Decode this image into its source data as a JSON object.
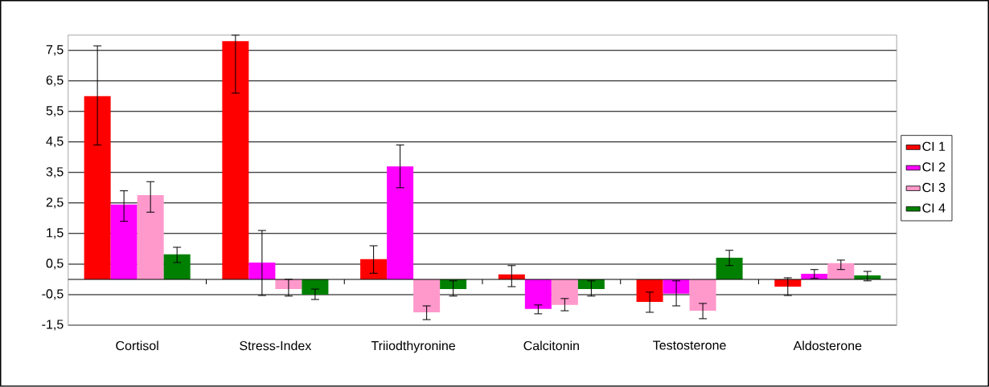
{
  "chart_data": {
    "type": "bar",
    "categories": [
      "Cortisol",
      "Stress-Index",
      "Triiodthyronine",
      "Calcitonin",
      "Testosterone",
      "Aldosterone"
    ],
    "series": [
      {
        "name": "CI 1",
        "color": "#ff0000",
        "values": [
          6.0,
          7.8,
          0.66,
          0.16,
          -0.74,
          -0.24
        ],
        "errors": [
          [
            4.4,
            7.65
          ],
          [
            6.1,
            8.0
          ],
          [
            0.2,
            1.1
          ],
          [
            -0.24,
            0.45
          ],
          [
            -1.08,
            -0.42
          ],
          [
            -0.53,
            0.05
          ]
        ]
      },
      {
        "name": "CI 2",
        "color": "#ff00ff",
        "values": [
          2.45,
          0.55,
          3.7,
          -0.97,
          -0.47,
          0.18
        ],
        "errors": [
          [
            1.9,
            2.9
          ],
          [
            -0.53,
            1.6
          ],
          [
            3.0,
            4.4
          ],
          [
            -1.13,
            -0.84
          ],
          [
            -0.87,
            -0.05
          ],
          [
            0.03,
            0.32
          ]
        ]
      },
      {
        "name": "CI 3",
        "color": "#ff99cc",
        "values": [
          2.76,
          -0.32,
          -1.08,
          -0.84,
          -1.03,
          0.53
        ],
        "errors": [
          [
            2.2,
            3.2
          ],
          [
            -0.55,
            0.0
          ],
          [
            -1.32,
            -0.87
          ],
          [
            -1.03,
            -0.63
          ],
          [
            -1.29,
            -0.79
          ],
          [
            0.32,
            0.63
          ]
        ]
      },
      {
        "name": "CI 4",
        "color": "#008000",
        "values": [
          0.82,
          -0.5,
          -0.32,
          -0.32,
          0.71,
          0.13
        ],
        "errors": [
          [
            0.55,
            1.05
          ],
          [
            -0.66,
            -0.32
          ],
          [
            -0.55,
            -0.05
          ],
          [
            -0.55,
            -0.05
          ],
          [
            0.45,
            0.95
          ],
          [
            -0.05,
            0.26
          ]
        ]
      }
    ],
    "ylim": [
      -1.5,
      8
    ],
    "yticks": [
      {
        "value": -1.5,
        "label": "-1,5"
      },
      {
        "value": -0.5,
        "label": "-0,5"
      },
      {
        "value": 0.5,
        "label": "0,5"
      },
      {
        "value": 1.5,
        "label": "1,5"
      },
      {
        "value": 2.5,
        "label": "2,5"
      },
      {
        "value": 3.5,
        "label": "3,5"
      },
      {
        "value": 4.5,
        "label": "4,5"
      },
      {
        "value": 5.5,
        "label": "5,5"
      },
      {
        "value": 6.5,
        "label": "6,5"
      },
      {
        "value": 7.5,
        "label": "7,5"
      }
    ],
    "grid": "y",
    "legend": "right"
  }
}
